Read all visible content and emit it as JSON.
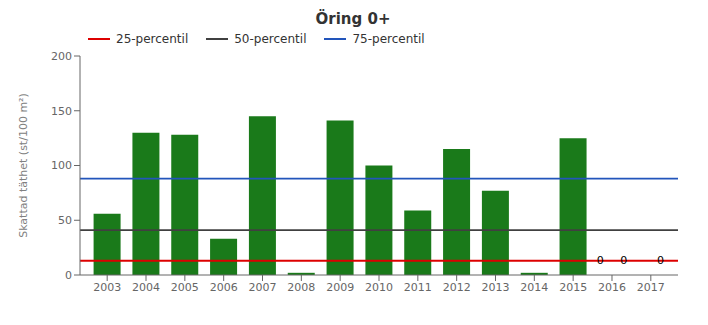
{
  "chart_data": {
    "type": "bar",
    "title": "Öring 0+",
    "ylabel": "Skattad täthet (st/100 m²)",
    "x": [
      2003,
      2004,
      2005,
      2006,
      2007,
      2008,
      2009,
      2010,
      2011,
      2012,
      2013,
      2014,
      2015,
      2016,
      2017
    ],
    "values": [
      56,
      130,
      128,
      33,
      145,
      2,
      141,
      100,
      59,
      115,
      77,
      2,
      125,
      0,
      0
    ],
    "color": "#1a7a1a",
    "xlim": [
      2002.3,
      2017.7
    ],
    "xticks": [
      2003,
      2004,
      2005,
      2006,
      2007,
      2008,
      2009,
      2010,
      2011,
      2012,
      2013,
      2014,
      2015,
      2016,
      2017
    ],
    "ylim": [
      0,
      200
    ],
    "yticks": [
      0,
      50,
      100,
      150,
      200
    ],
    "reference_lines": [
      {
        "name": "25-percentil",
        "value": 13,
        "color": "#dd0000"
      },
      {
        "name": "50-percentil",
        "value": 41,
        "color": "#404040"
      },
      {
        "name": "75-percentil",
        "value": 88,
        "color": "#2255bb"
      }
    ],
    "annotations": [
      {
        "text": "0",
        "x": 2015.7,
        "y": 13
      },
      {
        "text": "0",
        "x": 2016.3,
        "y": 13
      },
      {
        "text": "0",
        "x": 2017.25,
        "y": 13
      }
    ],
    "grid": false,
    "legend": "upper left"
  }
}
